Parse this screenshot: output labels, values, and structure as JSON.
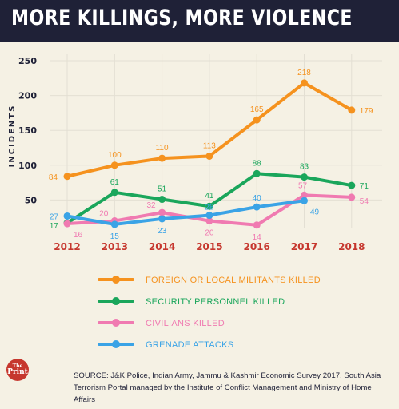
{
  "title": "MORE KILLINGS, MORE VIOLENCE",
  "logo": {
    "line1": "The",
    "line2": "Print"
  },
  "source": "SOURCE: J&K Police, Indian Army, Jammu & Kashmir Economic Survey 2017, South Asia Terrorism Portal managed by the Institute of Conflict Management and Ministry of Home Affairs",
  "colors": {
    "header": "#1f2137",
    "background": "#f5f1e4",
    "grid": "#e3dfd3",
    "year_labels": "#c6372e"
  },
  "chart_data": {
    "type": "line",
    "x": [
      "2012",
      "2013",
      "2014",
      "2015",
      "2016",
      "2017",
      "2018"
    ],
    "ylabel": "INCIDENTS",
    "yticks": [
      50,
      100,
      150,
      200,
      250
    ],
    "ylim": [
      0,
      250
    ],
    "grid": true,
    "legend_position": "bottom",
    "series": [
      {
        "name": "FOREIGN OR LOCAL MILITANTS KILLED",
        "color": "#f5921e",
        "values": [
          84,
          100,
          110,
          113,
          165,
          218,
          179
        ],
        "labels": [
          "84",
          "100",
          "110",
          "113",
          "165",
          "218",
          "179"
        ]
      },
      {
        "name": "SECURITY PERSONNEL KILLED",
        "color": "#1aa65b",
        "values": [
          17,
          61,
          51,
          41,
          88,
          83,
          71
        ],
        "labels": [
          "17",
          "61",
          "51",
          "41",
          "88",
          "83",
          "71"
        ]
      },
      {
        "name": "CIVILIANS KILLED",
        "color": "#f07ab1",
        "values": [
          16,
          20,
          32,
          20,
          14,
          57,
          54
        ],
        "labels": [
          "16",
          "20",
          "32",
          "20",
          "14",
          "57",
          "54"
        ]
      },
      {
        "name": "GRENADE ATTACKS",
        "color": "#3aa3e6",
        "values": [
          27,
          15,
          23,
          28,
          40,
          49,
          null
        ],
        "labels": [
          "27",
          "15",
          "23",
          "28",
          "40",
          "49",
          ""
        ]
      }
    ]
  }
}
